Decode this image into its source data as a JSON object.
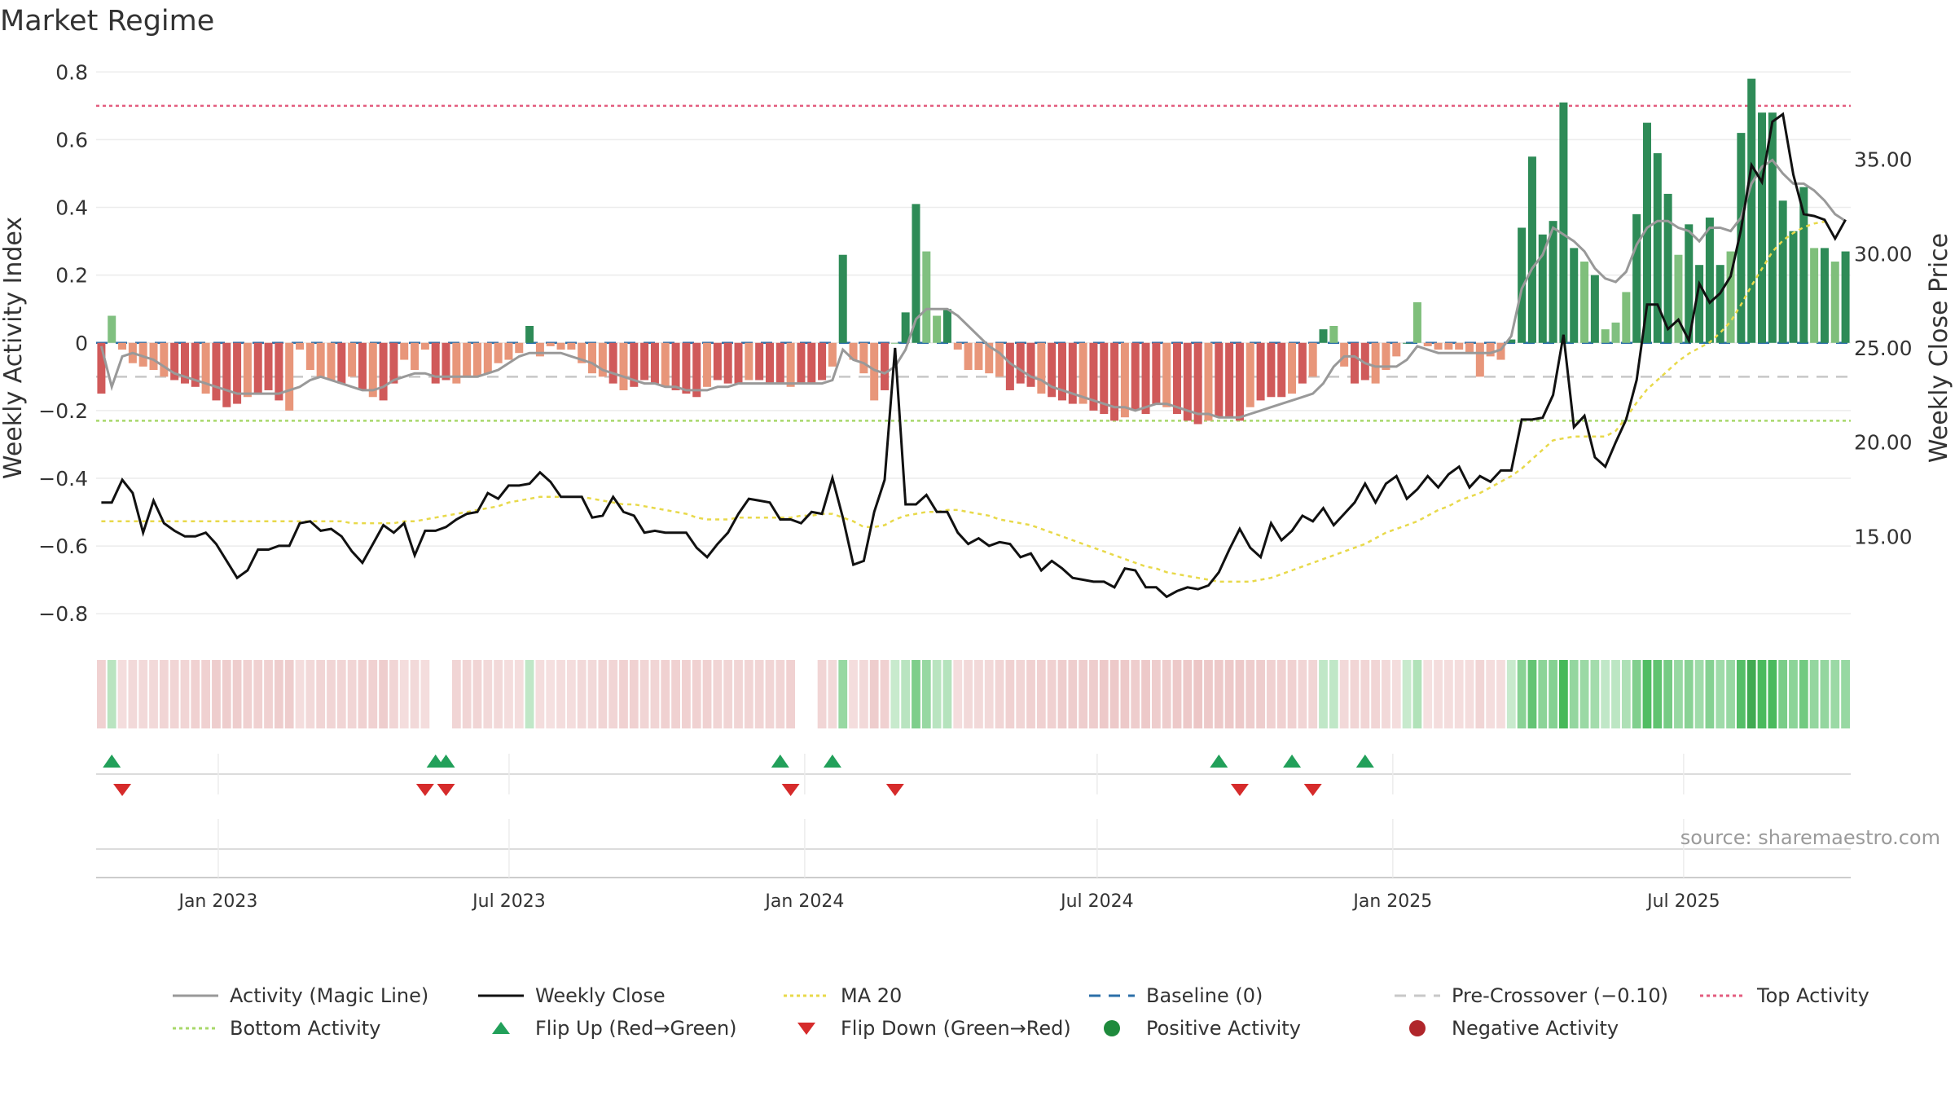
{
  "title": "Market Regime",
  "source": "source: sharemaestro.com",
  "chart_data": {
    "type": "bar",
    "title": "Market Regime",
    "y_left": {
      "label": "Weekly Activity Index",
      "range": [
        -0.85,
        0.82
      ],
      "ticks": [
        -0.8,
        -0.6,
        -0.4,
        -0.2,
        0,
        0.2,
        0.4,
        0.6,
        0.8
      ],
      "tick_labels": [
        "−0.8",
        "−0.6",
        "−0.4",
        "−0.2",
        "0",
        "0.2",
        "0.4",
        "0.6",
        "0.8"
      ]
    },
    "y_right": {
      "label": "Weekly Close Price",
      "range": [
        10.0,
        40.0
      ],
      "ticks": [
        15,
        20,
        25,
        30,
        35
      ],
      "tick_labels": [
        "15.00",
        "20.00",
        "25.00",
        "30.00",
        "35.00"
      ]
    },
    "x_axis": {
      "start": "2022-10-17",
      "end": "2025-10-13",
      "ticks": [
        "2023-01-01",
        "2023-07-01",
        "2024-01-01",
        "2024-07-01",
        "2025-01-01",
        "2025-07-01"
      ],
      "tick_labels": [
        "Jan 2023",
        "Jul 2023",
        "Jan 2024",
        "Jul 2024",
        "Jan 2025",
        "Jul 2025"
      ]
    },
    "reference_lines": {
      "baseline": 0,
      "pre_crossover": -0.1,
      "top_activity": 0.7,
      "bottom_activity": -0.23
    },
    "activity": [
      -0.15,
      0.08,
      -0.02,
      -0.06,
      -0.07,
      -0.08,
      -0.1,
      -0.11,
      -0.12,
      -0.13,
      -0.15,
      -0.17,
      -0.19,
      -0.18,
      -0.16,
      -0.15,
      -0.14,
      -0.17,
      -0.2,
      -0.02,
      -0.08,
      -0.1,
      -0.11,
      -0.12,
      -0.1,
      -0.14,
      -0.16,
      -0.17,
      -0.12,
      -0.05,
      -0.08,
      -0.02,
      -0.12,
      -0.11,
      -0.12,
      -0.1,
      -0.1,
      -0.09,
      -0.06,
      -0.05,
      -0.03,
      0.05,
      -0.04,
      -0.01,
      -0.02,
      -0.02,
      -0.06,
      -0.09,
      -0.1,
      -0.12,
      -0.14,
      -0.13,
      -0.11,
      -0.12,
      -0.13,
      -0.14,
      -0.15,
      -0.16,
      -0.13,
      -0.11,
      -0.12,
      -0.12,
      -0.11,
      -0.11,
      -0.12,
      -0.12,
      -0.13,
      -0.12,
      -0.12,
      -0.11,
      -0.07,
      0.26,
      -0.05,
      -0.09,
      -0.17,
      -0.14,
      0.0,
      0.09,
      0.41,
      0.27,
      0.08,
      0.1,
      -0.02,
      -0.08,
      -0.08,
      -0.09,
      -0.1,
      -0.14,
      -0.12,
      -0.13,
      -0.15,
      -0.16,
      -0.17,
      -0.18,
      -0.18,
      -0.2,
      -0.21,
      -0.23,
      -0.22,
      -0.2,
      -0.21,
      -0.18,
      -0.19,
      -0.21,
      -0.23,
      -0.24,
      -0.23,
      -0.22,
      -0.22,
      -0.23,
      -0.19,
      -0.17,
      -0.16,
      -0.16,
      -0.15,
      -0.12,
      -0.1,
      0.04,
      0.05,
      -0.07,
      -0.12,
      -0.11,
      -0.12,
      -0.08,
      -0.04,
      0.0,
      0.12,
      -0.01,
      -0.02,
      -0.02,
      -0.02,
      -0.03,
      -0.1,
      -0.04,
      -0.05,
      0.01,
      0.34,
      0.55,
      0.32,
      0.36,
      0.71,
      0.28,
      0.24,
      0.2,
      0.04,
      0.06,
      0.15,
      0.38,
      0.65,
      0.56,
      0.44,
      0.26,
      0.35,
      0.23,
      0.37,
      0.23,
      0.27,
      0.62,
      0.78,
      0.68,
      0.68,
      0.42,
      0.33,
      0.46,
      0.28,
      0.28,
      0.24,
      0.27
    ],
    "magic_line": [
      -0.01,
      -0.13,
      -0.04,
      -0.03,
      -0.04,
      -0.05,
      -0.07,
      -0.09,
      -0.1,
      -0.11,
      -0.12,
      -0.13,
      -0.14,
      -0.15,
      -0.15,
      -0.15,
      -0.15,
      -0.15,
      -0.14,
      -0.13,
      -0.11,
      -0.1,
      -0.11,
      -0.12,
      -0.13,
      -0.14,
      -0.14,
      -0.13,
      -0.11,
      -0.1,
      -0.09,
      -0.09,
      -0.1,
      -0.1,
      -0.1,
      -0.1,
      -0.1,
      -0.09,
      -0.08,
      -0.06,
      -0.04,
      -0.03,
      -0.03,
      -0.03,
      -0.03,
      -0.04,
      -0.05,
      -0.06,
      -0.08,
      -0.09,
      -0.1,
      -0.11,
      -0.12,
      -0.12,
      -0.13,
      -0.13,
      -0.14,
      -0.14,
      -0.14,
      -0.13,
      -0.13,
      -0.12,
      -0.12,
      -0.12,
      -0.12,
      -0.12,
      -0.12,
      -0.12,
      -0.12,
      -0.12,
      -0.11,
      -0.02,
      -0.05,
      -0.06,
      -0.08,
      -0.09,
      -0.07,
      -0.02,
      0.07,
      0.1,
      0.1,
      0.1,
      0.08,
      0.05,
      0.02,
      -0.01,
      -0.03,
      -0.06,
      -0.08,
      -0.1,
      -0.11,
      -0.13,
      -0.14,
      -0.15,
      -0.16,
      -0.17,
      -0.18,
      -0.19,
      -0.19,
      -0.2,
      -0.19,
      -0.18,
      -0.18,
      -0.19,
      -0.2,
      -0.21,
      -0.21,
      -0.22,
      -0.22,
      -0.22,
      -0.21,
      -0.2,
      -0.19,
      -0.18,
      -0.17,
      -0.16,
      -0.15,
      -0.12,
      -0.07,
      -0.04,
      -0.04,
      -0.06,
      -0.07,
      -0.07,
      -0.07,
      -0.05,
      -0.01,
      -0.02,
      -0.03,
      -0.03,
      -0.03,
      -0.03,
      -0.03,
      -0.03,
      -0.02,
      0.02,
      0.16,
      0.22,
      0.26,
      0.34,
      0.32,
      0.3,
      0.27,
      0.22,
      0.19,
      0.18,
      0.21,
      0.29,
      0.34,
      0.36,
      0.36,
      0.34,
      0.33,
      0.3,
      0.34,
      0.34,
      0.33,
      0.37,
      0.47,
      0.52,
      0.54,
      0.5,
      0.47,
      0.47,
      0.45,
      0.42,
      0.38,
      0.36
    ],
    "weekly_close": [
      16.8,
      16.8,
      18.0,
      17.3,
      15.2,
      16.9,
      15.7,
      15.3,
      15.0,
      15.0,
      15.2,
      14.6,
      13.7,
      12.8,
      13.2,
      14.3,
      14.3,
      14.5,
      14.5,
      15.7,
      15.8,
      15.3,
      15.4,
      15.0,
      14.2,
      13.6,
      14.6,
      15.6,
      15.2,
      15.7,
      14.0,
      15.3,
      15.3,
      15.5,
      15.9,
      16.2,
      16.3,
      17.3,
      17.0,
      17.7,
      17.7,
      17.8,
      18.4,
      17.9,
      17.1,
      17.1,
      17.1,
      16.0,
      16.1,
      17.1,
      16.3,
      16.1,
      15.2,
      15.3,
      15.2,
      15.2,
      15.2,
      14.4,
      13.9,
      14.6,
      15.2,
      16.2,
      17.0,
      16.9,
      16.8,
      15.9,
      15.9,
      15.7,
      16.3,
      16.2,
      18.1,
      16.0,
      13.5,
      13.7,
      16.3,
      18.0,
      25.0,
      16.7,
      16.7,
      17.2,
      16.3,
      16.3,
      15.2,
      14.6,
      14.9,
      14.5,
      14.7,
      14.6,
      13.9,
      14.1,
      13.2,
      13.7,
      13.3,
      12.8,
      12.7,
      12.6,
      12.6,
      12.3,
      13.3,
      13.2,
      12.3,
      12.3,
      11.8,
      12.1,
      12.3,
      12.2,
      12.4,
      13.1,
      14.3,
      15.4,
      14.4,
      13.9,
      15.7,
      14.8,
      15.3,
      16.1,
      15.8,
      16.5,
      15.6,
      16.2,
      16.8,
      17.8,
      16.8,
      17.8,
      18.2,
      17.0,
      17.5,
      18.2,
      17.6,
      18.3,
      18.7,
      17.6,
      18.2,
      17.9,
      18.5,
      18.5,
      21.2,
      21.2,
      21.3,
      22.5,
      25.7,
      20.8,
      21.4,
      19.2,
      18.7,
      20.0,
      21.2,
      23.3,
      27.3,
      27.3,
      26.0,
      26.5,
      25.4,
      28.4,
      27.4,
      27.9,
      28.8,
      31.3,
      34.7,
      33.8,
      37.0,
      37.4,
      34.2,
      32.1,
      32.0,
      31.8,
      30.8,
      31.8
    ],
    "ma20": [
      15.8,
      15.8,
      15.8,
      15.8,
      15.8,
      15.8,
      15.8,
      15.8,
      15.8,
      15.8,
      15.8,
      15.8,
      15.8,
      15.8,
      15.8,
      15.8,
      15.8,
      15.8,
      15.8,
      15.8,
      15.8,
      15.8,
      15.8,
      15.8,
      15.7,
      15.7,
      15.7,
      15.7,
      15.7,
      15.8,
      15.8,
      15.9,
      16.0,
      16.1,
      16.2,
      16.3,
      16.4,
      16.5,
      16.6,
      16.8,
      16.9,
      17.0,
      17.1,
      17.1,
      17.1,
      17.1,
      17.1,
      17.0,
      16.9,
      16.8,
      16.7,
      16.7,
      16.6,
      16.5,
      16.4,
      16.3,
      16.2,
      16.0,
      15.9,
      15.9,
      15.9,
      16.0,
      16.0,
      16.0,
      16.0,
      16.0,
      16.0,
      16.1,
      16.1,
      16.2,
      16.2,
      16.0,
      15.8,
      15.5,
      15.5,
      15.6,
      15.9,
      16.1,
      16.2,
      16.3,
      16.3,
      16.4,
      16.4,
      16.3,
      16.2,
      16.1,
      15.9,
      15.8,
      15.7,
      15.6,
      15.4,
      15.2,
      15.0,
      14.8,
      14.6,
      14.4,
      14.2,
      14.0,
      13.8,
      13.6,
      13.4,
      13.3,
      13.1,
      13.0,
      12.9,
      12.8,
      12.7,
      12.6,
      12.6,
      12.6,
      12.6,
      12.7,
      12.8,
      13.0,
      13.2,
      13.4,
      13.6,
      13.8,
      14.0,
      14.2,
      14.4,
      14.6,
      14.9,
      15.2,
      15.4,
      15.6,
      15.8,
      16.1,
      16.4,
      16.6,
      16.9,
      17.1,
      17.3,
      17.6,
      17.9,
      18.2,
      18.6,
      19.1,
      19.6,
      20.1,
      20.2,
      20.3,
      20.3,
      20.3,
      20.3,
      20.6,
      21.3,
      22.1,
      22.8,
      23.3,
      23.8,
      24.3,
      24.7,
      25.0,
      25.3,
      25.8,
      26.4,
      27.3,
      28.3,
      29.2,
      30.1,
      30.7,
      31.1,
      31.4,
      31.6,
      31.7
    ],
    "regime_strip_note": "per-week shaded strip: green = positive activity, red = negative activity, darker = stronger",
    "regime_gaps": [
      32,
      33,
      67,
      68
    ],
    "flip_up_weeks": [
      1,
      32,
      33,
      65,
      70,
      107,
      114,
      121
    ],
    "flip_down_weeks": [
      2,
      31,
      33,
      66,
      76,
      109,
      116
    ]
  },
  "legend": [
    {
      "label": "Activity (Magic Line)",
      "kind": "line",
      "color": "#999999",
      "dash": ""
    },
    {
      "label": "Weekly Close",
      "kind": "line",
      "color": "#111111",
      "dash": ""
    },
    {
      "label": "MA 20",
      "kind": "line",
      "color": "#e8d94a",
      "dash": "4,4"
    },
    {
      "label": "Baseline (0)",
      "kind": "line",
      "color": "#2b6fa8",
      "dash": "14,10"
    },
    {
      "label": "Pre-Crossover (−0.10)",
      "kind": "line",
      "color": "#c8c8c8",
      "dash": "14,10"
    },
    {
      "label": "Top Activity",
      "kind": "line",
      "color": "#e35d7f",
      "dash": "4,4"
    },
    {
      "label": "Bottom Activity",
      "kind": "line",
      "color": "#a8d86a",
      "dash": "4,4"
    },
    {
      "label": "Flip Up (Red→Green)",
      "kind": "tri-up",
      "color": "#22a05a",
      "dash": ""
    },
    {
      "label": "Flip Down (Green→Red)",
      "kind": "tri-down",
      "color": "#d62b2b",
      "dash": ""
    },
    {
      "label": "Positive Activity",
      "kind": "dot",
      "color": "#1e8a3c",
      "dash": ""
    },
    {
      "label": "Negative Activity",
      "kind": "dot",
      "color": "#b0262b",
      "dash": ""
    }
  ]
}
